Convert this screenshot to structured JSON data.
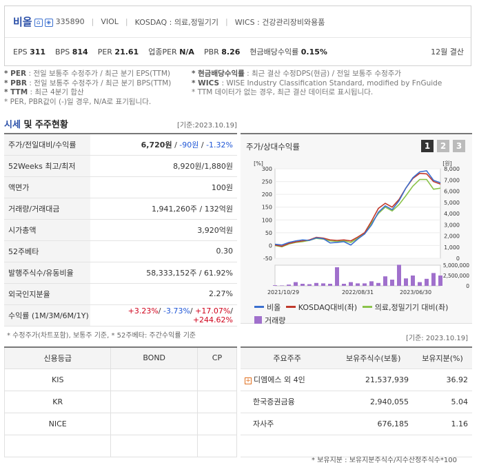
{
  "header": {
    "name": "비올",
    "code": "335890",
    "ticker": "VIOL",
    "market": "KOSDAQ : 의료,정밀기기",
    "wics": "WICS : 건강관리장비와용품",
    "eps_label": "EPS",
    "eps": "311",
    "bps_label": "BPS",
    "bps": "814",
    "per_label": "PER",
    "per": "21.61",
    "sector_per_label": "업종PER",
    "sector_per": "N/A",
    "pbr_label": "PBR",
    "pbr": "8.26",
    "div_label": "현금배당수익률",
    "div": "0.15%",
    "settle": "12월 결산"
  },
  "notes": {
    "l1k": "* PER",
    "l1": ": 전일 보통주 수정주가 / 최근 분기 EPS(TTM)",
    "l2k": "* PBR",
    "l2": ": 전일 보통주 수정주가 / 최근 분기 BPS(TTM)",
    "l3k": "* TTM",
    "l3": ": 최근 4분기 합산",
    "l4": "* PER, PBR값이 (-)일 경우, N/A로 표기됩니다.",
    "r1k": "* 현금배당수익률",
    "r1": ": 최근 결산 수정DPS(현금) / 전일 보통주 수정주가",
    "r2k": "* WICS",
    "r2": ": WISE Industry Classification Standard, modified by FnGuide",
    "r3": "* TTM 데이터가 없는 경우, 최근 결산 데이터로 표시됩니다."
  },
  "section": {
    "title_a": "시세",
    "title_b": " 및 주주현황",
    "date": "[기준:2023.10.19]"
  },
  "stats": [
    {
      "label": "주가/전일대비/수익률",
      "v1": "6,720원",
      "v2": "-90원",
      "v3": "-1.32%"
    },
    {
      "label": "52Weeks 최고/최저",
      "value": "8,920원/1,880원"
    },
    {
      "label": "액면가",
      "value": "100원"
    },
    {
      "label": "거래량/거래대금",
      "value": "1,941,260주 / 132억원"
    },
    {
      "label": "시가총액",
      "value": "3,920억원"
    },
    {
      "label": "52주베타",
      "value": "0.30"
    },
    {
      "label": "발행주식수/유동비율",
      "value": "58,333,152주 / 61.92%"
    },
    {
      "label": "외국인지분율",
      "value": "2.27%"
    },
    {
      "label": "수익률 (1M/3M/6M/1Y)",
      "r1": "+3.23%",
      "r2": "-3.73%",
      "r3": "+17.07%",
      "r4": "+244.62%"
    }
  ],
  "foot1": "* 수정주가(차트포함), 보통주 기준, * 52주베타: 주간수익률 기준",
  "chart": {
    "title": "주가/상대수익률",
    "tabs": [
      "1",
      "2",
      "3"
    ],
    "legend": [
      "비올",
      "KOSDAQ대비(좌)",
      "의료,정밀기기 대비(좌)",
      "거래량"
    ],
    "colors": {
      "stock": "#3a6fcf",
      "kosdaq": "#c0392b",
      "sector": "#8bc34a",
      "volume": "#a070cc"
    }
  },
  "chart_data": {
    "type": "line",
    "left_unit": "[%]",
    "right_unit": "[원]",
    "left_ticks": [
      "300",
      "250",
      "200",
      "150",
      "100",
      "50",
      "0",
      "-50"
    ],
    "right_ticks": [
      "8,000",
      "7,000",
      "6,000",
      "5,000",
      "4,000",
      "3,000",
      "2,000",
      "1,000",
      "0"
    ],
    "vol_ticks": [
      "5,000,000",
      "2,500,000",
      "0"
    ],
    "x_ticks": [
      "2021/10/29",
      "2022/08/31",
      "2023/06/30"
    ],
    "ylim": [
      -50,
      300
    ],
    "vol_max": 5000000,
    "series": [
      {
        "name": "비올",
        "values": [
          5,
          2,
          12,
          18,
          22,
          20,
          30,
          27,
          10,
          12,
          15,
          2,
          25,
          45,
          80,
          130,
          155,
          140,
          175,
          225,
          265,
          288,
          292,
          255,
          245
        ]
      },
      {
        "name": "KOSDAQ대비(좌)",
        "values": [
          2,
          -3,
          8,
          14,
          18,
          22,
          32,
          29,
          22,
          20,
          22,
          18,
          33,
          50,
          95,
          145,
          165,
          150,
          180,
          225,
          262,
          282,
          280,
          250,
          240
        ]
      },
      {
        "name": "의료,정밀기기 대비(좌)",
        "values": [
          0,
          -5,
          6,
          12,
          15,
          20,
          28,
          25,
          18,
          16,
          18,
          12,
          28,
          45,
          88,
          125,
          150,
          135,
          160,
          195,
          232,
          258,
          258,
          220,
          224
        ]
      },
      {
        "name": "거래량",
        "values": [
          150000,
          100000,
          300000,
          900000,
          500000,
          400000,
          700000,
          600000,
          500000,
          4500000,
          500000,
          900000,
          600000,
          600000,
          1100000,
          700000,
          2300000,
          1500000,
          5100000,
          1800000,
          2500000,
          900000,
          1700000,
          3100000,
          2500000
        ]
      }
    ]
  },
  "credit": {
    "headers": [
      "신용등급",
      "BOND",
      "CP"
    ],
    "rows": [
      "KIS",
      "KR",
      "NICE",
      ""
    ]
  },
  "holders": {
    "date": "[기준: 2023.10.19]",
    "headers": [
      "주요주주",
      "보유주식수(보통)",
      "보유지분(%)"
    ],
    "rows": [
      {
        "name": "디엠에스 외 4인",
        "shares": "21,537,939",
        "pct": "36.92"
      },
      {
        "name": "한국증권금융",
        "shares": "2,940,055",
        "pct": "5.04"
      },
      {
        "name": "자사주",
        "shares": "676,185",
        "pct": "1.16"
      },
      {
        "name": "",
        "shares": "",
        "pct": ""
      }
    ],
    "foot": "* 보유지분 : 보유지분주식수/지수산정주식수*100"
  }
}
